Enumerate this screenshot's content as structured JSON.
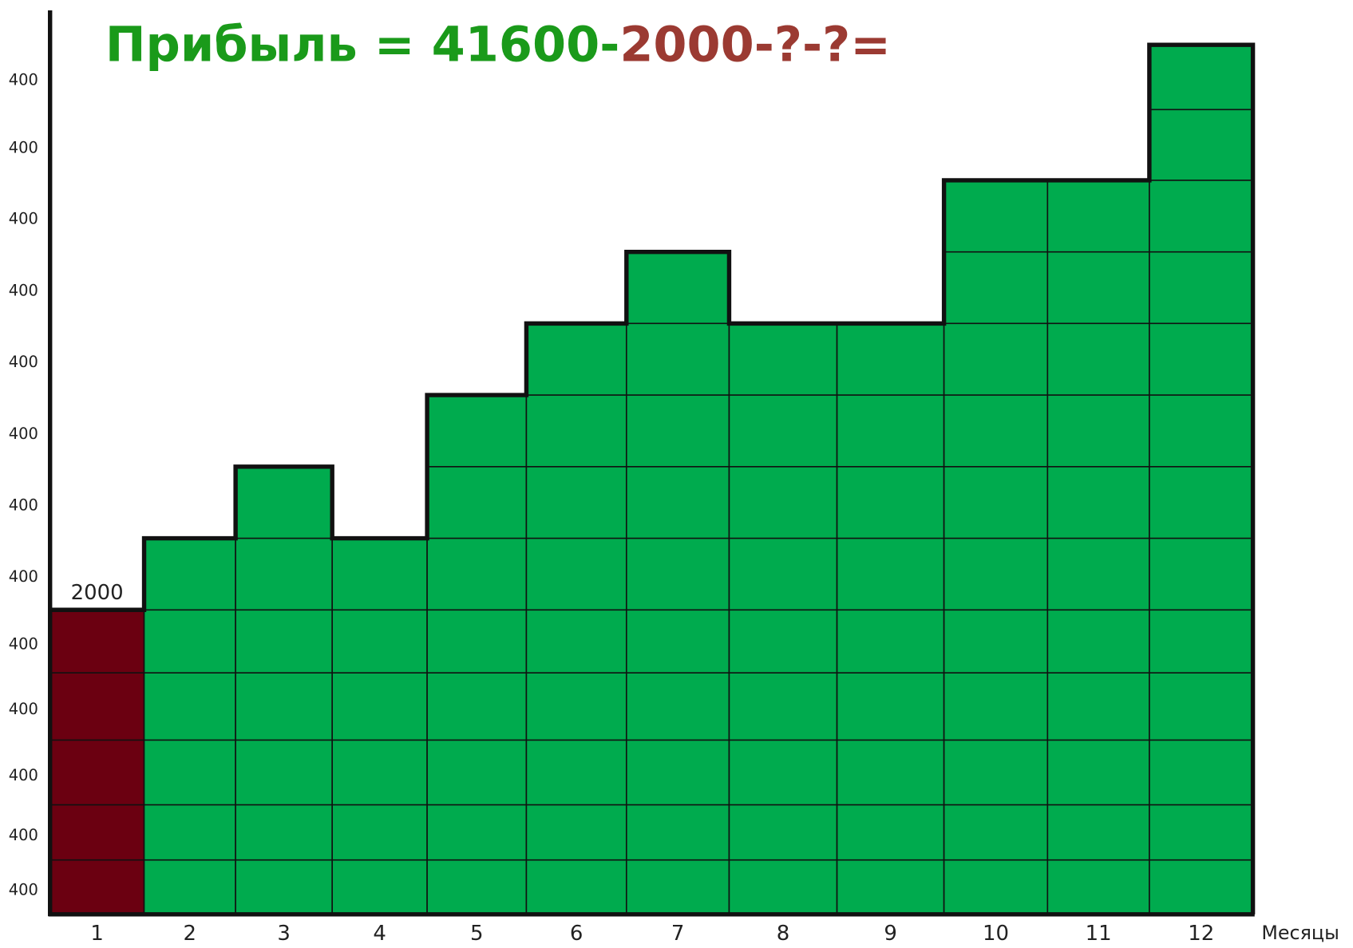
{
  "chart_data": {
    "type": "blocks",
    "title_parts": [
      {
        "text": "Прибыль = 41600-",
        "color": "#1a9a1a"
      },
      {
        "text": "2000-?-?=",
        "color": "#9b3a32"
      }
    ],
    "categories": [
      "1",
      "2",
      "3",
      "4",
      "5",
      "6",
      "7",
      "8",
      "9",
      "10",
      "11",
      "12"
    ],
    "values": [
      2000,
      2400,
      2800,
      2400,
      3200,
      3600,
      4000,
      3600,
      3600,
      4400,
      4400,
      5200
    ],
    "colors": [
      "#6b0011",
      "#00ab4e",
      "#00ab4e",
      "#00ab4e",
      "#00ab4e",
      "#00ab4e",
      "#00ab4e",
      "#00ab4e",
      "#00ab4e",
      "#00ab4e",
      "#00ab4e",
      "#00ab4e"
    ],
    "block_labels": [
      400,
      400,
      400,
      400,
      400,
      400,
      400,
      400,
      400,
      400,
      400,
      400,
      400
    ],
    "x_label": "Месяцы"
  }
}
